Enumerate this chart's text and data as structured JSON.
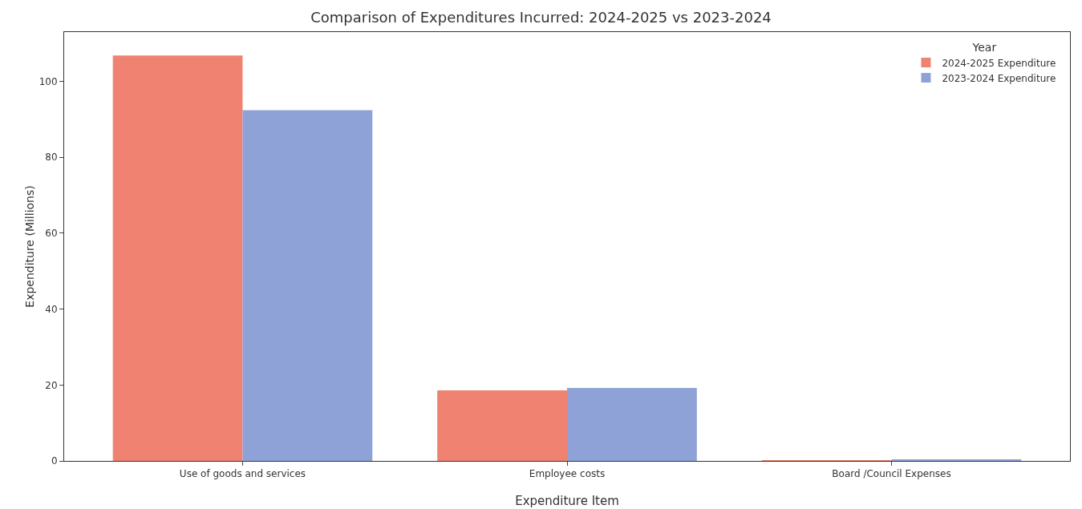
{
  "chart_data": {
    "type": "bar",
    "title": "Comparison of Expenditures Incurred: 2024-2025 vs 2023-2024",
    "xlabel": "Expenditure Item",
    "ylabel": "Expenditure (Millions)",
    "legend_title": "Year",
    "categories": [
      "Use of goods and services",
      "Employee costs",
      "Board /Council Expenses"
    ],
    "series": [
      {
        "name": "2024-2025 Expenditure",
        "color": "#ef8270",
        "values": [
          106.8,
          18.6,
          0.2
        ]
      },
      {
        "name": "2023-2024 Expenditure",
        "color": "#8fa2d8",
        "values": [
          92.4,
          19.2,
          0.3
        ]
      }
    ],
    "ylim": [
      0,
      113
    ],
    "yticks": [
      0,
      20,
      40,
      60,
      80,
      100
    ],
    "grid": false,
    "legend": "top right"
  }
}
